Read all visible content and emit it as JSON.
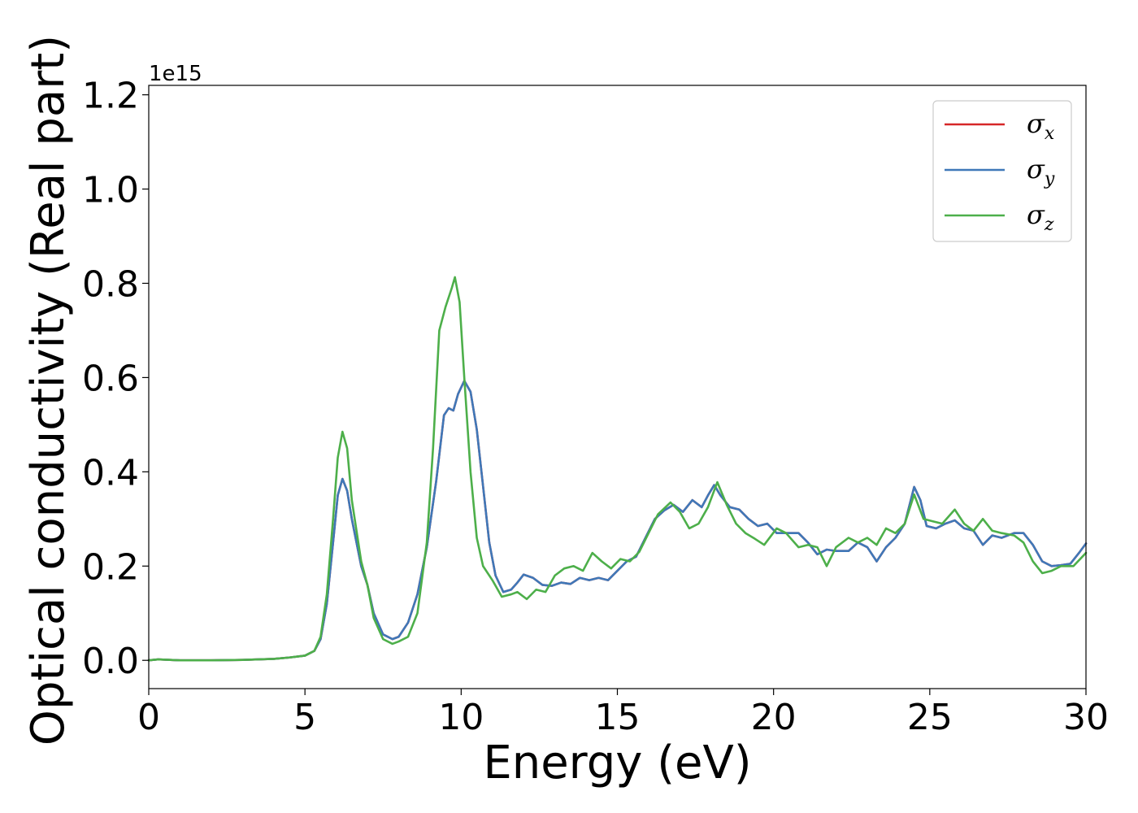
{
  "chart_data": {
    "type": "line",
    "xlabel": "Energy (eV)",
    "ylabel": "Optical conductivity (Real part)",
    "y_offset_label": "1e15",
    "xlim": [
      0,
      30
    ],
    "ylim": [
      -0.06,
      1.22
    ],
    "x_ticks": [
      0,
      5,
      10,
      15,
      20,
      25,
      30
    ],
    "x_tick_labels": [
      "0",
      "5",
      "10",
      "15",
      "20",
      "25",
      "30"
    ],
    "y_ticks": [
      0.0,
      0.2,
      0.4,
      0.6,
      0.8,
      1.0,
      1.2
    ],
    "y_tick_labels": [
      "0.0",
      "0.2",
      "0.4",
      "0.6",
      "0.8",
      "1.0",
      "1.2"
    ],
    "grid": false,
    "legend_position": "top-right",
    "series": [
      {
        "name": "σ",
        "subscript": "x",
        "color": "#d62728",
        "points": [
          [
            0,
            0.0
          ],
          [
            0.3,
            0.002
          ],
          [
            1,
            0.0
          ],
          [
            2,
            0.0
          ],
          [
            3,
            0.001
          ],
          [
            4,
            0.003
          ],
          [
            4.5,
            0.006
          ],
          [
            5,
            0.01
          ],
          [
            5.3,
            0.02
          ],
          [
            5.5,
            0.045
          ],
          [
            5.7,
            0.12
          ],
          [
            5.9,
            0.25
          ],
          [
            6.05,
            0.35
          ],
          [
            6.2,
            0.385
          ],
          [
            6.35,
            0.36
          ],
          [
            6.5,
            0.3
          ],
          [
            6.8,
            0.2
          ],
          [
            7.0,
            0.16
          ],
          [
            7.2,
            0.1
          ],
          [
            7.5,
            0.055
          ],
          [
            7.8,
            0.045
          ],
          [
            8.0,
            0.05
          ],
          [
            8.3,
            0.08
          ],
          [
            8.6,
            0.14
          ],
          [
            8.9,
            0.24
          ],
          [
            9.2,
            0.38
          ],
          [
            9.45,
            0.52
          ],
          [
            9.6,
            0.535
          ],
          [
            9.75,
            0.53
          ],
          [
            9.9,
            0.565
          ],
          [
            10.1,
            0.593
          ],
          [
            10.3,
            0.57
          ],
          [
            10.5,
            0.49
          ],
          [
            10.7,
            0.37
          ],
          [
            10.9,
            0.25
          ],
          [
            11.1,
            0.18
          ],
          [
            11.35,
            0.145
          ],
          [
            11.6,
            0.15
          ],
          [
            11.8,
            0.165
          ],
          [
            12.0,
            0.182
          ],
          [
            12.3,
            0.175
          ],
          [
            12.6,
            0.16
          ],
          [
            12.9,
            0.158
          ],
          [
            13.2,
            0.165
          ],
          [
            13.5,
            0.162
          ],
          [
            13.8,
            0.175
          ],
          [
            14.1,
            0.17
          ],
          [
            14.4,
            0.175
          ],
          [
            14.7,
            0.17
          ],
          [
            15.0,
            0.19
          ],
          [
            15.3,
            0.21
          ],
          [
            15.6,
            0.22
          ],
          [
            15.9,
            0.26
          ],
          [
            16.2,
            0.3
          ],
          [
            16.5,
            0.318
          ],
          [
            16.8,
            0.33
          ],
          [
            17.1,
            0.315
          ],
          [
            17.4,
            0.34
          ],
          [
            17.7,
            0.325
          ],
          [
            17.9,
            0.35
          ],
          [
            18.1,
            0.372
          ],
          [
            18.3,
            0.35
          ],
          [
            18.6,
            0.325
          ],
          [
            18.9,
            0.32
          ],
          [
            19.2,
            0.3
          ],
          [
            19.5,
            0.285
          ],
          [
            19.8,
            0.29
          ],
          [
            20.1,
            0.27
          ],
          [
            20.4,
            0.27
          ],
          [
            20.8,
            0.27
          ],
          [
            21.1,
            0.25
          ],
          [
            21.4,
            0.225
          ],
          [
            21.7,
            0.235
          ],
          [
            22.0,
            0.232
          ],
          [
            22.4,
            0.232
          ],
          [
            22.7,
            0.25
          ],
          [
            23.0,
            0.24
          ],
          [
            23.3,
            0.21
          ],
          [
            23.6,
            0.24
          ],
          [
            23.9,
            0.26
          ],
          [
            24.2,
            0.29
          ],
          [
            24.5,
            0.368
          ],
          [
            24.7,
            0.34
          ],
          [
            24.9,
            0.285
          ],
          [
            25.2,
            0.28
          ],
          [
            25.5,
            0.29
          ],
          [
            25.8,
            0.297
          ],
          [
            26.1,
            0.28
          ],
          [
            26.4,
            0.275
          ],
          [
            26.7,
            0.245
          ],
          [
            27.0,
            0.265
          ],
          [
            27.3,
            0.26
          ],
          [
            27.7,
            0.27
          ],
          [
            28.0,
            0.27
          ],
          [
            28.3,
            0.245
          ],
          [
            28.6,
            0.21
          ],
          [
            28.9,
            0.2
          ],
          [
            29.2,
            0.202
          ],
          [
            29.5,
            0.205
          ],
          [
            29.8,
            0.23
          ],
          [
            30.0,
            0.248
          ]
        ]
      },
      {
        "name": "σ",
        "subscript": "y",
        "color": "#3f78b8",
        "points": [
          [
            0,
            0.0
          ],
          [
            0.3,
            0.002
          ],
          [
            1,
            0.0
          ],
          [
            2,
            0.0
          ],
          [
            3,
            0.001
          ],
          [
            4,
            0.003
          ],
          [
            4.5,
            0.006
          ],
          [
            5,
            0.01
          ],
          [
            5.3,
            0.02
          ],
          [
            5.5,
            0.045
          ],
          [
            5.7,
            0.12
          ],
          [
            5.9,
            0.25
          ],
          [
            6.05,
            0.35
          ],
          [
            6.2,
            0.385
          ],
          [
            6.35,
            0.36
          ],
          [
            6.5,
            0.3
          ],
          [
            6.8,
            0.2
          ],
          [
            7.0,
            0.16
          ],
          [
            7.2,
            0.1
          ],
          [
            7.5,
            0.055
          ],
          [
            7.8,
            0.045
          ],
          [
            8.0,
            0.05
          ],
          [
            8.3,
            0.08
          ],
          [
            8.6,
            0.14
          ],
          [
            8.9,
            0.24
          ],
          [
            9.2,
            0.38
          ],
          [
            9.45,
            0.52
          ],
          [
            9.6,
            0.535
          ],
          [
            9.75,
            0.53
          ],
          [
            9.9,
            0.565
          ],
          [
            10.1,
            0.593
          ],
          [
            10.3,
            0.57
          ],
          [
            10.5,
            0.49
          ],
          [
            10.7,
            0.37
          ],
          [
            10.9,
            0.25
          ],
          [
            11.1,
            0.18
          ],
          [
            11.35,
            0.145
          ],
          [
            11.6,
            0.15
          ],
          [
            11.8,
            0.165
          ],
          [
            12.0,
            0.182
          ],
          [
            12.3,
            0.175
          ],
          [
            12.6,
            0.16
          ],
          [
            12.9,
            0.158
          ],
          [
            13.2,
            0.165
          ],
          [
            13.5,
            0.162
          ],
          [
            13.8,
            0.175
          ],
          [
            14.1,
            0.17
          ],
          [
            14.4,
            0.175
          ],
          [
            14.7,
            0.17
          ],
          [
            15.0,
            0.19
          ],
          [
            15.3,
            0.21
          ],
          [
            15.6,
            0.22
          ],
          [
            15.9,
            0.26
          ],
          [
            16.2,
            0.3
          ],
          [
            16.5,
            0.318
          ],
          [
            16.8,
            0.33
          ],
          [
            17.1,
            0.315
          ],
          [
            17.4,
            0.34
          ],
          [
            17.7,
            0.325
          ],
          [
            17.9,
            0.35
          ],
          [
            18.1,
            0.372
          ],
          [
            18.3,
            0.35
          ],
          [
            18.6,
            0.325
          ],
          [
            18.9,
            0.32
          ],
          [
            19.2,
            0.3
          ],
          [
            19.5,
            0.285
          ],
          [
            19.8,
            0.29
          ],
          [
            20.1,
            0.27
          ],
          [
            20.4,
            0.27
          ],
          [
            20.8,
            0.27
          ],
          [
            21.1,
            0.25
          ],
          [
            21.4,
            0.225
          ],
          [
            21.7,
            0.235
          ],
          [
            22.0,
            0.232
          ],
          [
            22.4,
            0.232
          ],
          [
            22.7,
            0.25
          ],
          [
            23.0,
            0.24
          ],
          [
            23.3,
            0.21
          ],
          [
            23.6,
            0.24
          ],
          [
            23.9,
            0.26
          ],
          [
            24.2,
            0.29
          ],
          [
            24.5,
            0.368
          ],
          [
            24.7,
            0.34
          ],
          [
            24.9,
            0.285
          ],
          [
            25.2,
            0.28
          ],
          [
            25.5,
            0.29
          ],
          [
            25.8,
            0.297
          ],
          [
            26.1,
            0.28
          ],
          [
            26.4,
            0.275
          ],
          [
            26.7,
            0.245
          ],
          [
            27.0,
            0.265
          ],
          [
            27.3,
            0.26
          ],
          [
            27.7,
            0.27
          ],
          [
            28.0,
            0.27
          ],
          [
            28.3,
            0.245
          ],
          [
            28.6,
            0.21
          ],
          [
            28.9,
            0.2
          ],
          [
            29.2,
            0.202
          ],
          [
            29.5,
            0.205
          ],
          [
            29.8,
            0.23
          ],
          [
            30.0,
            0.248
          ]
        ]
      },
      {
        "name": "σ",
        "subscript": "z",
        "color": "#4daf4a",
        "points": [
          [
            0,
            0.0
          ],
          [
            0.3,
            0.002
          ],
          [
            1,
            0.0
          ],
          [
            2,
            0.0
          ],
          [
            3,
            0.001
          ],
          [
            4,
            0.003
          ],
          [
            4.5,
            0.006
          ],
          [
            5,
            0.01
          ],
          [
            5.3,
            0.02
          ],
          [
            5.5,
            0.05
          ],
          [
            5.7,
            0.14
          ],
          [
            5.9,
            0.3
          ],
          [
            6.05,
            0.43
          ],
          [
            6.2,
            0.485
          ],
          [
            6.35,
            0.45
          ],
          [
            6.5,
            0.34
          ],
          [
            6.8,
            0.21
          ],
          [
            7.0,
            0.16
          ],
          [
            7.2,
            0.09
          ],
          [
            7.5,
            0.045
          ],
          [
            7.8,
            0.035
          ],
          [
            8.0,
            0.04
          ],
          [
            8.3,
            0.05
          ],
          [
            8.6,
            0.1
          ],
          [
            8.9,
            0.25
          ],
          [
            9.1,
            0.45
          ],
          [
            9.3,
            0.7
          ],
          [
            9.5,
            0.75
          ],
          [
            9.7,
            0.79
          ],
          [
            9.8,
            0.813
          ],
          [
            9.95,
            0.76
          ],
          [
            10.1,
            0.6
          ],
          [
            10.3,
            0.4
          ],
          [
            10.5,
            0.26
          ],
          [
            10.7,
            0.2
          ],
          [
            11.0,
            0.17
          ],
          [
            11.3,
            0.135
          ],
          [
            11.6,
            0.14
          ],
          [
            11.8,
            0.145
          ],
          [
            12.1,
            0.13
          ],
          [
            12.4,
            0.15
          ],
          [
            12.7,
            0.145
          ],
          [
            13.0,
            0.18
          ],
          [
            13.3,
            0.195
          ],
          [
            13.6,
            0.2
          ],
          [
            13.9,
            0.19
          ],
          [
            14.2,
            0.228
          ],
          [
            14.5,
            0.21
          ],
          [
            14.8,
            0.195
          ],
          [
            15.1,
            0.215
          ],
          [
            15.4,
            0.21
          ],
          [
            15.7,
            0.23
          ],
          [
            16.0,
            0.27
          ],
          [
            16.3,
            0.31
          ],
          [
            16.7,
            0.335
          ],
          [
            17.0,
            0.315
          ],
          [
            17.3,
            0.28
          ],
          [
            17.6,
            0.29
          ],
          [
            17.9,
            0.325
          ],
          [
            18.2,
            0.378
          ],
          [
            18.5,
            0.33
          ],
          [
            18.8,
            0.29
          ],
          [
            19.1,
            0.27
          ],
          [
            19.4,
            0.258
          ],
          [
            19.7,
            0.245
          ],
          [
            20.1,
            0.28
          ],
          [
            20.4,
            0.27
          ],
          [
            20.8,
            0.24
          ],
          [
            21.1,
            0.245
          ],
          [
            21.4,
            0.24
          ],
          [
            21.7,
            0.2
          ],
          [
            22.0,
            0.24
          ],
          [
            22.4,
            0.26
          ],
          [
            22.7,
            0.25
          ],
          [
            23.0,
            0.26
          ],
          [
            23.3,
            0.245
          ],
          [
            23.6,
            0.28
          ],
          [
            23.9,
            0.27
          ],
          [
            24.2,
            0.29
          ],
          [
            24.5,
            0.352
          ],
          [
            24.8,
            0.3
          ],
          [
            25.1,
            0.295
          ],
          [
            25.4,
            0.29
          ],
          [
            25.8,
            0.32
          ],
          [
            26.1,
            0.29
          ],
          [
            26.4,
            0.275
          ],
          [
            26.7,
            0.3
          ],
          [
            27.0,
            0.275
          ],
          [
            27.3,
            0.27
          ],
          [
            27.7,
            0.265
          ],
          [
            28.0,
            0.25
          ],
          [
            28.3,
            0.21
          ],
          [
            28.6,
            0.185
          ],
          [
            28.9,
            0.19
          ],
          [
            29.2,
            0.2
          ],
          [
            29.6,
            0.2
          ],
          [
            30.0,
            0.228
          ]
        ]
      }
    ]
  }
}
